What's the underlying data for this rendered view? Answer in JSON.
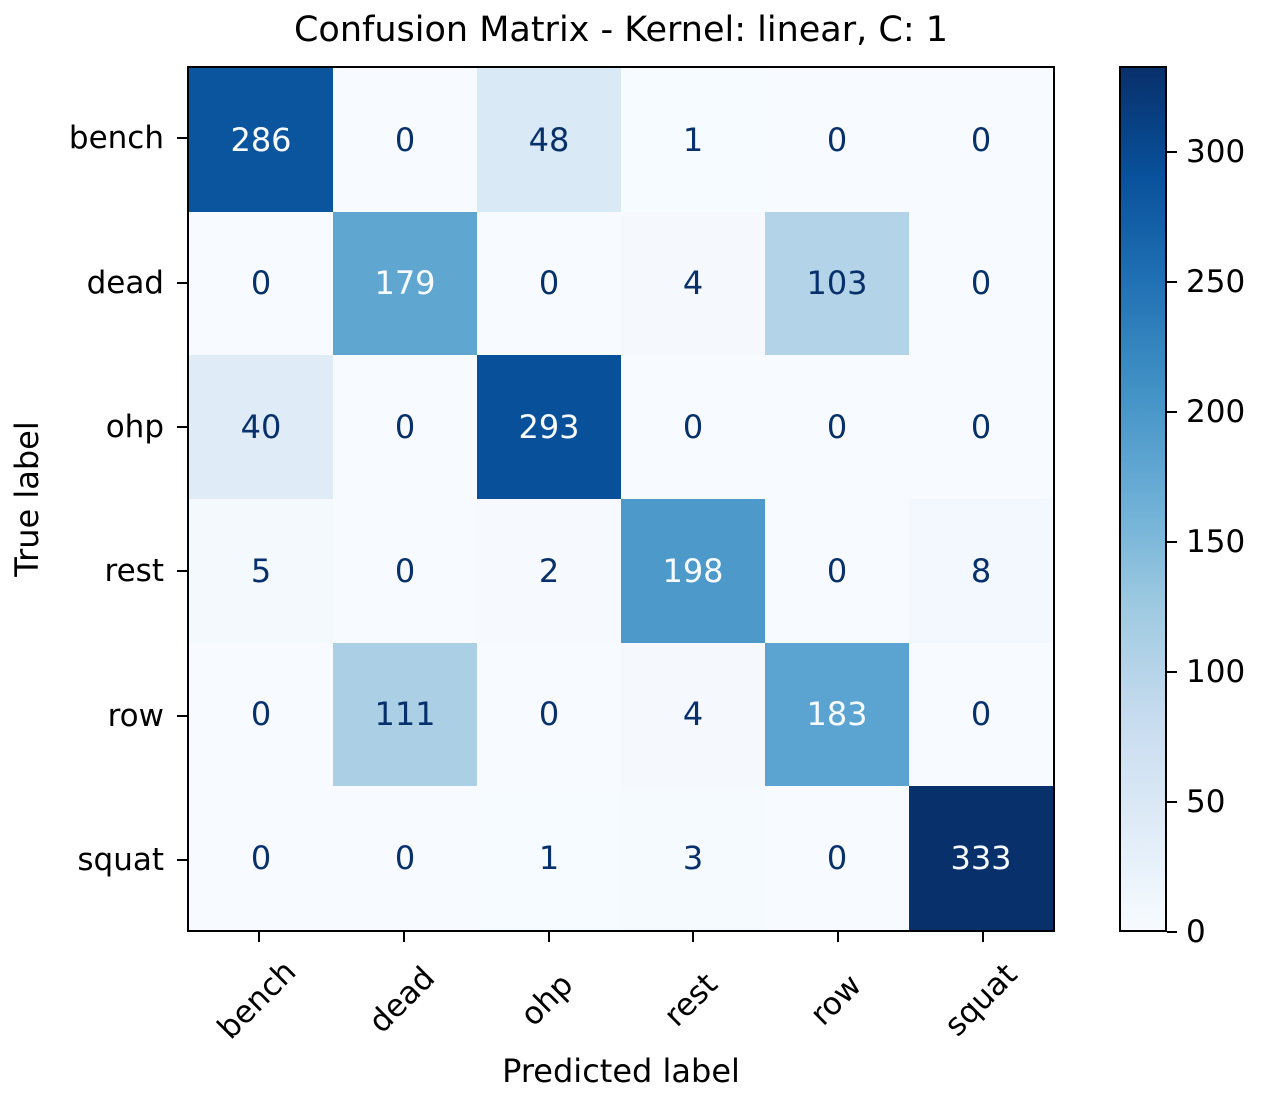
{
  "chart_data": {
    "type": "heatmap",
    "title": "Confusion Matrix - Kernel: linear, C: 1",
    "xlabel": "Predicted label",
    "ylabel": "True label",
    "x_categories": [
      "bench",
      "dead",
      "ohp",
      "rest",
      "row",
      "squat"
    ],
    "y_categories": [
      "bench",
      "dead",
      "ohp",
      "rest",
      "row",
      "squat"
    ],
    "matrix": [
      [
        286,
        0,
        48,
        1,
        0,
        0
      ],
      [
        0,
        179,
        0,
        4,
        103,
        0
      ],
      [
        40,
        0,
        293,
        0,
        0,
        0
      ],
      [
        5,
        0,
        2,
        198,
        0,
        8
      ],
      [
        0,
        111,
        0,
        4,
        183,
        0
      ],
      [
        0,
        0,
        1,
        3,
        0,
        333
      ]
    ],
    "vmin": 0,
    "vmax": 333,
    "colormap": "Blues",
    "colormap_stops": [
      [
        0.0,
        "#f7fbff"
      ],
      [
        0.125,
        "#deebf7"
      ],
      [
        0.25,
        "#c6dbef"
      ],
      [
        0.375,
        "#9ecae1"
      ],
      [
        0.5,
        "#6baed6"
      ],
      [
        0.625,
        "#4292c6"
      ],
      [
        0.75,
        "#2171b5"
      ],
      [
        0.875,
        "#08519c"
      ],
      [
        1.0,
        "#08306b"
      ]
    ],
    "colorbar_ticks": [
      0,
      50,
      100,
      150,
      200,
      250,
      300
    ],
    "colors": {
      "cell_text_light": "#f7fbff",
      "cell_text_dark": "#08306b",
      "axis": "#000000",
      "background": "#ffffff"
    },
    "legend_position": "right-colorbar",
    "grid": false
  }
}
